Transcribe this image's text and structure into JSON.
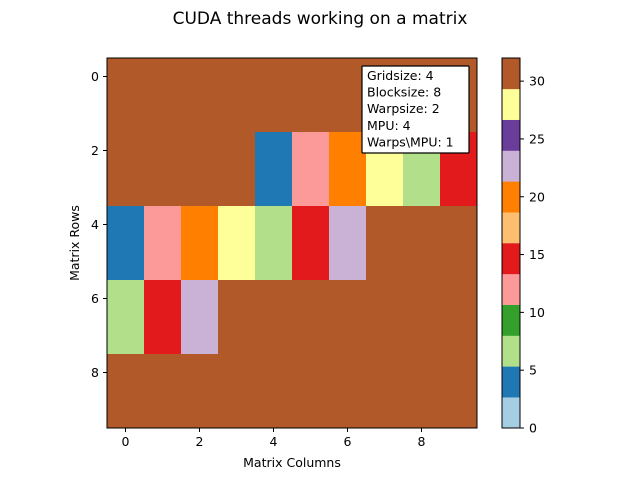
{
  "chart_data": {
    "type": "heatmap",
    "title": "CUDA threads working on a matrix",
    "xlabel": "Matrix Columns",
    "ylabel": "Matrix Rows",
    "x_ticks": [
      0,
      2,
      4,
      6,
      8
    ],
    "y_ticks": [
      0,
      2,
      4,
      6,
      8
    ],
    "rows": 10,
    "cols": 10,
    "matrix": [
      [
        31,
        31,
        31,
        31,
        31,
        31,
        31,
        31,
        31,
        31
      ],
      [
        31,
        31,
        31,
        31,
        31,
        31,
        31,
        31,
        31,
        31
      ],
      [
        31,
        31,
        31,
        31,
        4,
        12,
        19,
        27,
        7,
        15
      ],
      [
        31,
        31,
        31,
        31,
        4,
        12,
        19,
        27,
        7,
        15
      ],
      [
        4,
        12,
        19,
        27,
        7,
        15,
        22,
        31,
        31,
        31
      ],
      [
        4,
        12,
        19,
        27,
        7,
        15,
        22,
        31,
        31,
        31
      ],
      [
        7,
        15,
        22,
        31,
        31,
        31,
        31,
        31,
        31,
        31
      ],
      [
        7,
        15,
        22,
        31,
        31,
        31,
        31,
        31,
        31,
        31
      ],
      [
        31,
        31,
        31,
        31,
        31,
        31,
        31,
        31,
        31,
        31
      ],
      [
        31,
        31,
        31,
        31,
        31,
        31,
        31,
        31,
        31,
        31
      ]
    ],
    "colormap": "Paired",
    "colorbar": {
      "range": [
        0,
        32
      ],
      "ticks": [
        0,
        5,
        10,
        15,
        20,
        25,
        30
      ],
      "colors": [
        "#a6cee3",
        "#1f78b4",
        "#b2df8a",
        "#33a02c",
        "#fb9a99",
        "#e31a1c",
        "#fdbf6f",
        "#ff7f00",
        "#cab2d6",
        "#6a3d9a",
        "#ffff99",
        "#b15928"
      ]
    },
    "annotation": {
      "lines": [
        "Gridsize: 4",
        "Blocksize: 8",
        "Warpsize: 2",
        "MPU: 4",
        "Warps\\MPU: 1"
      ],
      "placement": "top-right"
    }
  }
}
